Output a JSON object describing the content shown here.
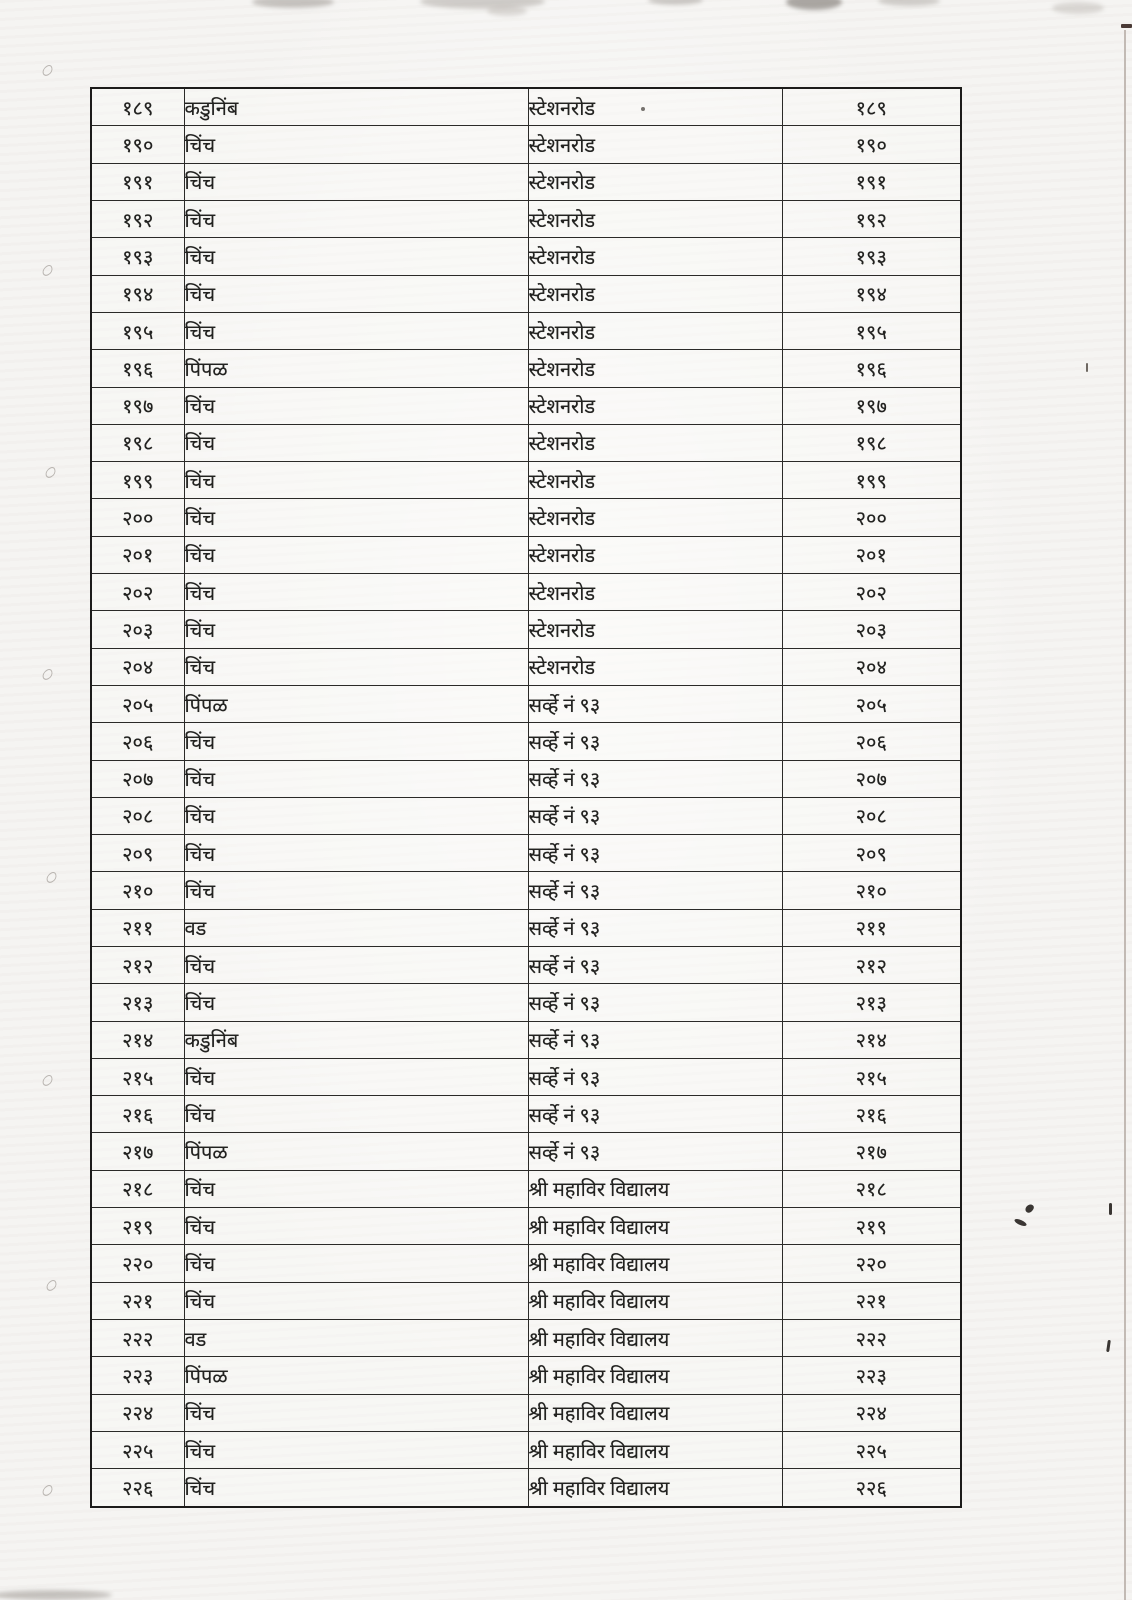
{
  "colors": {
    "paper": "#f5f4f2",
    "ink": "#222220",
    "line": "#2b2a28"
  },
  "table": {
    "rows": [
      {
        "sr": "१८९",
        "tree": "कडुनिंब",
        "loc": "स्टेशनरोड",
        "sr2": "१८९"
      },
      {
        "sr": "१९०",
        "tree": "चिंच",
        "loc": "स्टेशनरोड",
        "sr2": "१९०"
      },
      {
        "sr": "१९१",
        "tree": "चिंच",
        "loc": "स्टेशनरोड",
        "sr2": "१९१"
      },
      {
        "sr": "१९२",
        "tree": "चिंच",
        "loc": "स्टेशनरोड",
        "sr2": "१९२"
      },
      {
        "sr": "१९३",
        "tree": "चिंच",
        "loc": "स्टेशनरोड",
        "sr2": "१९३"
      },
      {
        "sr": "१९४",
        "tree": "चिंच",
        "loc": "स्टेशनरोड",
        "sr2": "१९४"
      },
      {
        "sr": "१९५",
        "tree": "चिंच",
        "loc": "स्टेशनरोड",
        "sr2": "१९५"
      },
      {
        "sr": "१९६",
        "tree": "पिंपळ",
        "loc": "स्टेशनरोड",
        "sr2": "१९६"
      },
      {
        "sr": "१९७",
        "tree": "चिंच",
        "loc": "स्टेशनरोड",
        "sr2": "१९७"
      },
      {
        "sr": "१९८",
        "tree": "चिंच",
        "loc": "स्टेशनरोड",
        "sr2": "१९८"
      },
      {
        "sr": "१९९",
        "tree": "चिंच",
        "loc": "स्टेशनरोड",
        "sr2": "१९९"
      },
      {
        "sr": "२००",
        "tree": "चिंच",
        "loc": "स्टेशनरोड",
        "sr2": "२००"
      },
      {
        "sr": "२०१",
        "tree": "चिंच",
        "loc": "स्टेशनरोड",
        "sr2": "२०१"
      },
      {
        "sr": "२०२",
        "tree": "चिंच",
        "loc": "स्टेशनरोड",
        "sr2": "२०२"
      },
      {
        "sr": "२०३",
        "tree": "चिंच",
        "loc": "स्टेशनरोड",
        "sr2": "२०३"
      },
      {
        "sr": "२०४",
        "tree": "चिंच",
        "loc": "स्टेशनरोड",
        "sr2": "२०४"
      },
      {
        "sr": "२०५",
        "tree": "पिंपळ",
        "loc": "सर्व्हे नं ९३",
        "sr2": "२०५"
      },
      {
        "sr": "२०६",
        "tree": "चिंच",
        "loc": "सर्व्हे नं ९३",
        "sr2": "२०६"
      },
      {
        "sr": "२०७",
        "tree": "चिंच",
        "loc": "सर्व्हे नं ९३",
        "sr2": "२०७"
      },
      {
        "sr": "२०८",
        "tree": "चिंच",
        "loc": "सर्व्हे नं ९३",
        "sr2": "२०८"
      },
      {
        "sr": "२०९",
        "tree": "चिंच",
        "loc": "सर्व्हे नं ९३",
        "sr2": "२०९"
      },
      {
        "sr": "२१०",
        "tree": "चिंच",
        "loc": "सर्व्हे नं ९३",
        "sr2": "२१०"
      },
      {
        "sr": "२११",
        "tree": "वड",
        "loc": "सर्व्हे नं ९३",
        "sr2": "२११"
      },
      {
        "sr": "२१२",
        "tree": "चिंच",
        "loc": "सर्व्हे नं ९३",
        "sr2": "२१२"
      },
      {
        "sr": "२१३",
        "tree": "चिंच",
        "loc": "सर्व्हे नं ९३",
        "sr2": "२१३"
      },
      {
        "sr": "२१४",
        "tree": "कडुनिंब",
        "loc": "सर्व्हे नं ९३",
        "sr2": "२१४"
      },
      {
        "sr": "२१५",
        "tree": "चिंच",
        "loc": "सर्व्हे नं ९३",
        "sr2": "२१५"
      },
      {
        "sr": "२१६",
        "tree": "चिंच",
        "loc": "सर्व्हे नं ९३",
        "sr2": "२१६"
      },
      {
        "sr": "२१७",
        "tree": "पिंपळ",
        "loc": "सर्व्हे नं ९३",
        "sr2": "२१७"
      },
      {
        "sr": "२१८",
        "tree": "चिंच",
        "loc": "श्री महाविर विद्यालय",
        "sr2": "२१८"
      },
      {
        "sr": "२१९",
        "tree": "चिंच",
        "loc": "श्री महाविर विद्यालय",
        "sr2": "२१९"
      },
      {
        "sr": "२२०",
        "tree": "चिंच",
        "loc": "श्री महाविर विद्यालय",
        "sr2": "२२०"
      },
      {
        "sr": "२२१",
        "tree": "चिंच",
        "loc": "श्री महाविर विद्यालय",
        "sr2": "२२१"
      },
      {
        "sr": "२२२",
        "tree": "वड",
        "loc": "श्री महाविर विद्यालय",
        "sr2": "२२२"
      },
      {
        "sr": "२२३",
        "tree": "पिंपळ",
        "loc": "श्री महाविर विद्यालय",
        "sr2": "२२३"
      },
      {
        "sr": "२२४",
        "tree": "चिंच",
        "loc": "श्री महाविर विद्यालय",
        "sr2": "२२४"
      },
      {
        "sr": "२२५",
        "tree": "चिंच",
        "loc": "श्री महाविर विद्यालय",
        "sr2": "२२५"
      },
      {
        "sr": "२२६",
        "tree": "चिंच",
        "loc": "श्री महाविर विद्यालय",
        "sr2": "२२६"
      }
    ]
  }
}
